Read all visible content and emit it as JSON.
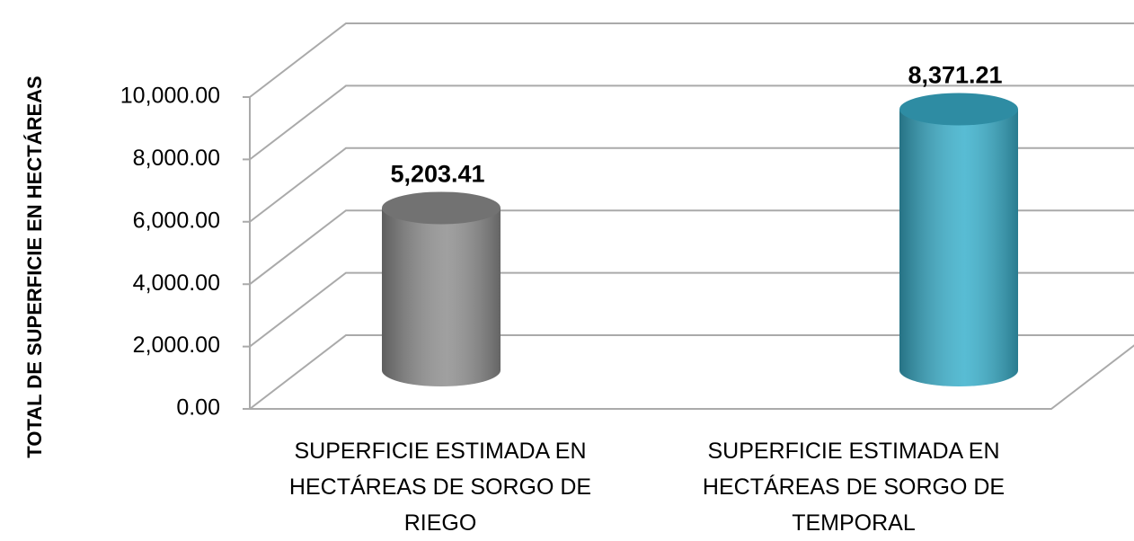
{
  "chart_data": {
    "type": "bar3d",
    "y_label": "TOTAL DE SUPERFICIE EN HECTÁREAS",
    "categories": [
      "SUPERFICIE ESTIMADA EN HECTÁREAS DE SORGO DE RIEGO",
      "SUPERFICIE ESTIMADA EN HECTÁREAS DE SORGO DE TEMPORAL"
    ],
    "values": [
      5203.41,
      8371.21
    ],
    "value_labels": [
      "5,203.41",
      "8,371.21"
    ],
    "colors": [
      "#8f8f8f",
      "#3ab0cc"
    ],
    "ylim": [
      0,
      10000
    ],
    "yticks": [
      {
        "value": 0,
        "label": "0.00"
      },
      {
        "value": 2000,
        "label": "2,000.00"
      },
      {
        "value": 4000,
        "label": "4,000.00"
      },
      {
        "value": 6000,
        "label": "6,000.00"
      },
      {
        "value": 8000,
        "label": "8,000.00"
      },
      {
        "value": 10000,
        "label": "10,000.00"
      }
    ],
    "grid": true
  }
}
